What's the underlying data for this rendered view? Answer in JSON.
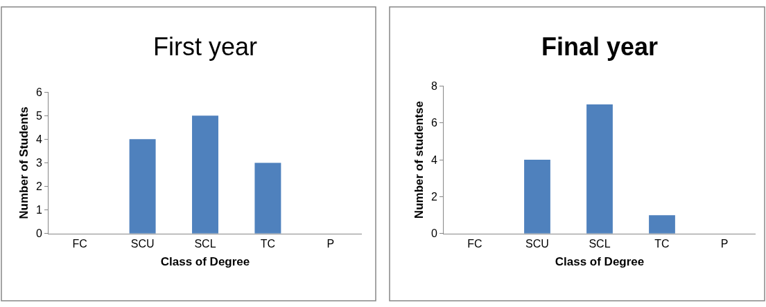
{
  "chart_data": [
    {
      "type": "bar",
      "title": "First year",
      "xlabel": "Class of Degree",
      "ylabel": "Number of Students",
      "categories": [
        "FC",
        "SCU",
        "SCL",
        "TC",
        "P"
      ],
      "values": [
        0,
        4,
        5,
        3,
        0
      ],
      "color": "#4f81bd",
      "ylim": [
        0,
        6
      ],
      "yticks": [
        0,
        1,
        2,
        3,
        4,
        5,
        6
      ]
    },
    {
      "type": "bar",
      "title": "Final year",
      "xlabel": "Class of Degree",
      "ylabel": "Number of studentse",
      "categories": [
        "FC",
        "SCU",
        "SCL",
        "TC",
        "P"
      ],
      "values": [
        0,
        4,
        7,
        1,
        0
      ],
      "color": "#4f81bd",
      "ylim": [
        0,
        8
      ],
      "yticks": [
        0,
        2,
        4,
        6,
        8
      ]
    }
  ]
}
